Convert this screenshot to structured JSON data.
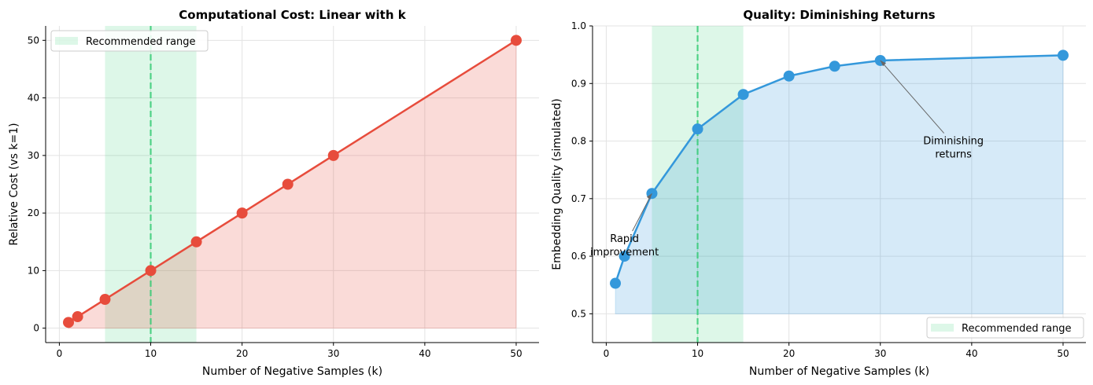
{
  "chart_data": [
    {
      "type": "line",
      "title": "Computational Cost: Linear with k",
      "xlabel": "Number of Negative Samples (k)",
      "ylabel": "Relative Cost (vs k=1)",
      "xlim": [
        -1.5,
        52.5
      ],
      "ylim": [
        -2.5,
        52.5
      ],
      "xticks": [
        0,
        10,
        20,
        30,
        40,
        50
      ],
      "yticks": [
        0,
        10,
        20,
        30,
        40,
        50
      ],
      "grid": true,
      "x": [
        1,
        2,
        5,
        10,
        15,
        20,
        25,
        30,
        50
      ],
      "y": [
        1,
        2,
        5,
        10,
        15,
        20,
        25,
        30,
        50
      ],
      "fill_baseline": 0,
      "color": "#e74c3c",
      "recommended_range": [
        5,
        15
      ],
      "recommended_line": 10,
      "recommended_color": "#2ecc71",
      "legend": {
        "label": "Recommended range",
        "position": "upper-left"
      },
      "annotations": []
    },
    {
      "type": "line",
      "title": "Quality: Diminishing Returns",
      "xlabel": "Number of Negative Samples (k)",
      "ylabel": "Embedding Quality (simulated)",
      "xlim": [
        -1.5,
        52.5
      ],
      "ylim": [
        0.45,
        1.0
      ],
      "xticks": [
        0,
        10,
        20,
        30,
        40,
        50
      ],
      "yticks": [
        0.5,
        0.6,
        0.7,
        0.8,
        0.9,
        1.0
      ],
      "grid": true,
      "x": [
        1,
        2,
        5,
        10,
        15,
        20,
        25,
        30,
        50
      ],
      "y": [
        0.553,
        0.6,
        0.709,
        0.821,
        0.881,
        0.913,
        0.93,
        0.94,
        0.949
      ],
      "fill_baseline": 0.5,
      "color": "#3498db",
      "recommended_range": [
        5,
        15
      ],
      "recommended_line": 10,
      "recommended_color": "#2ecc71",
      "legend": {
        "label": "Recommended range",
        "position": "lower-right"
      },
      "annotations": [
        {
          "lines": [
            "Rapid",
            "improvement"
          ],
          "target": [
            5,
            0.709
          ],
          "text_at": [
            2,
            0.63
          ]
        },
        {
          "lines": [
            "Diminishing",
            "returns"
          ],
          "target": [
            30,
            0.94
          ],
          "text_at": [
            38,
            0.8
          ]
        }
      ]
    }
  ]
}
